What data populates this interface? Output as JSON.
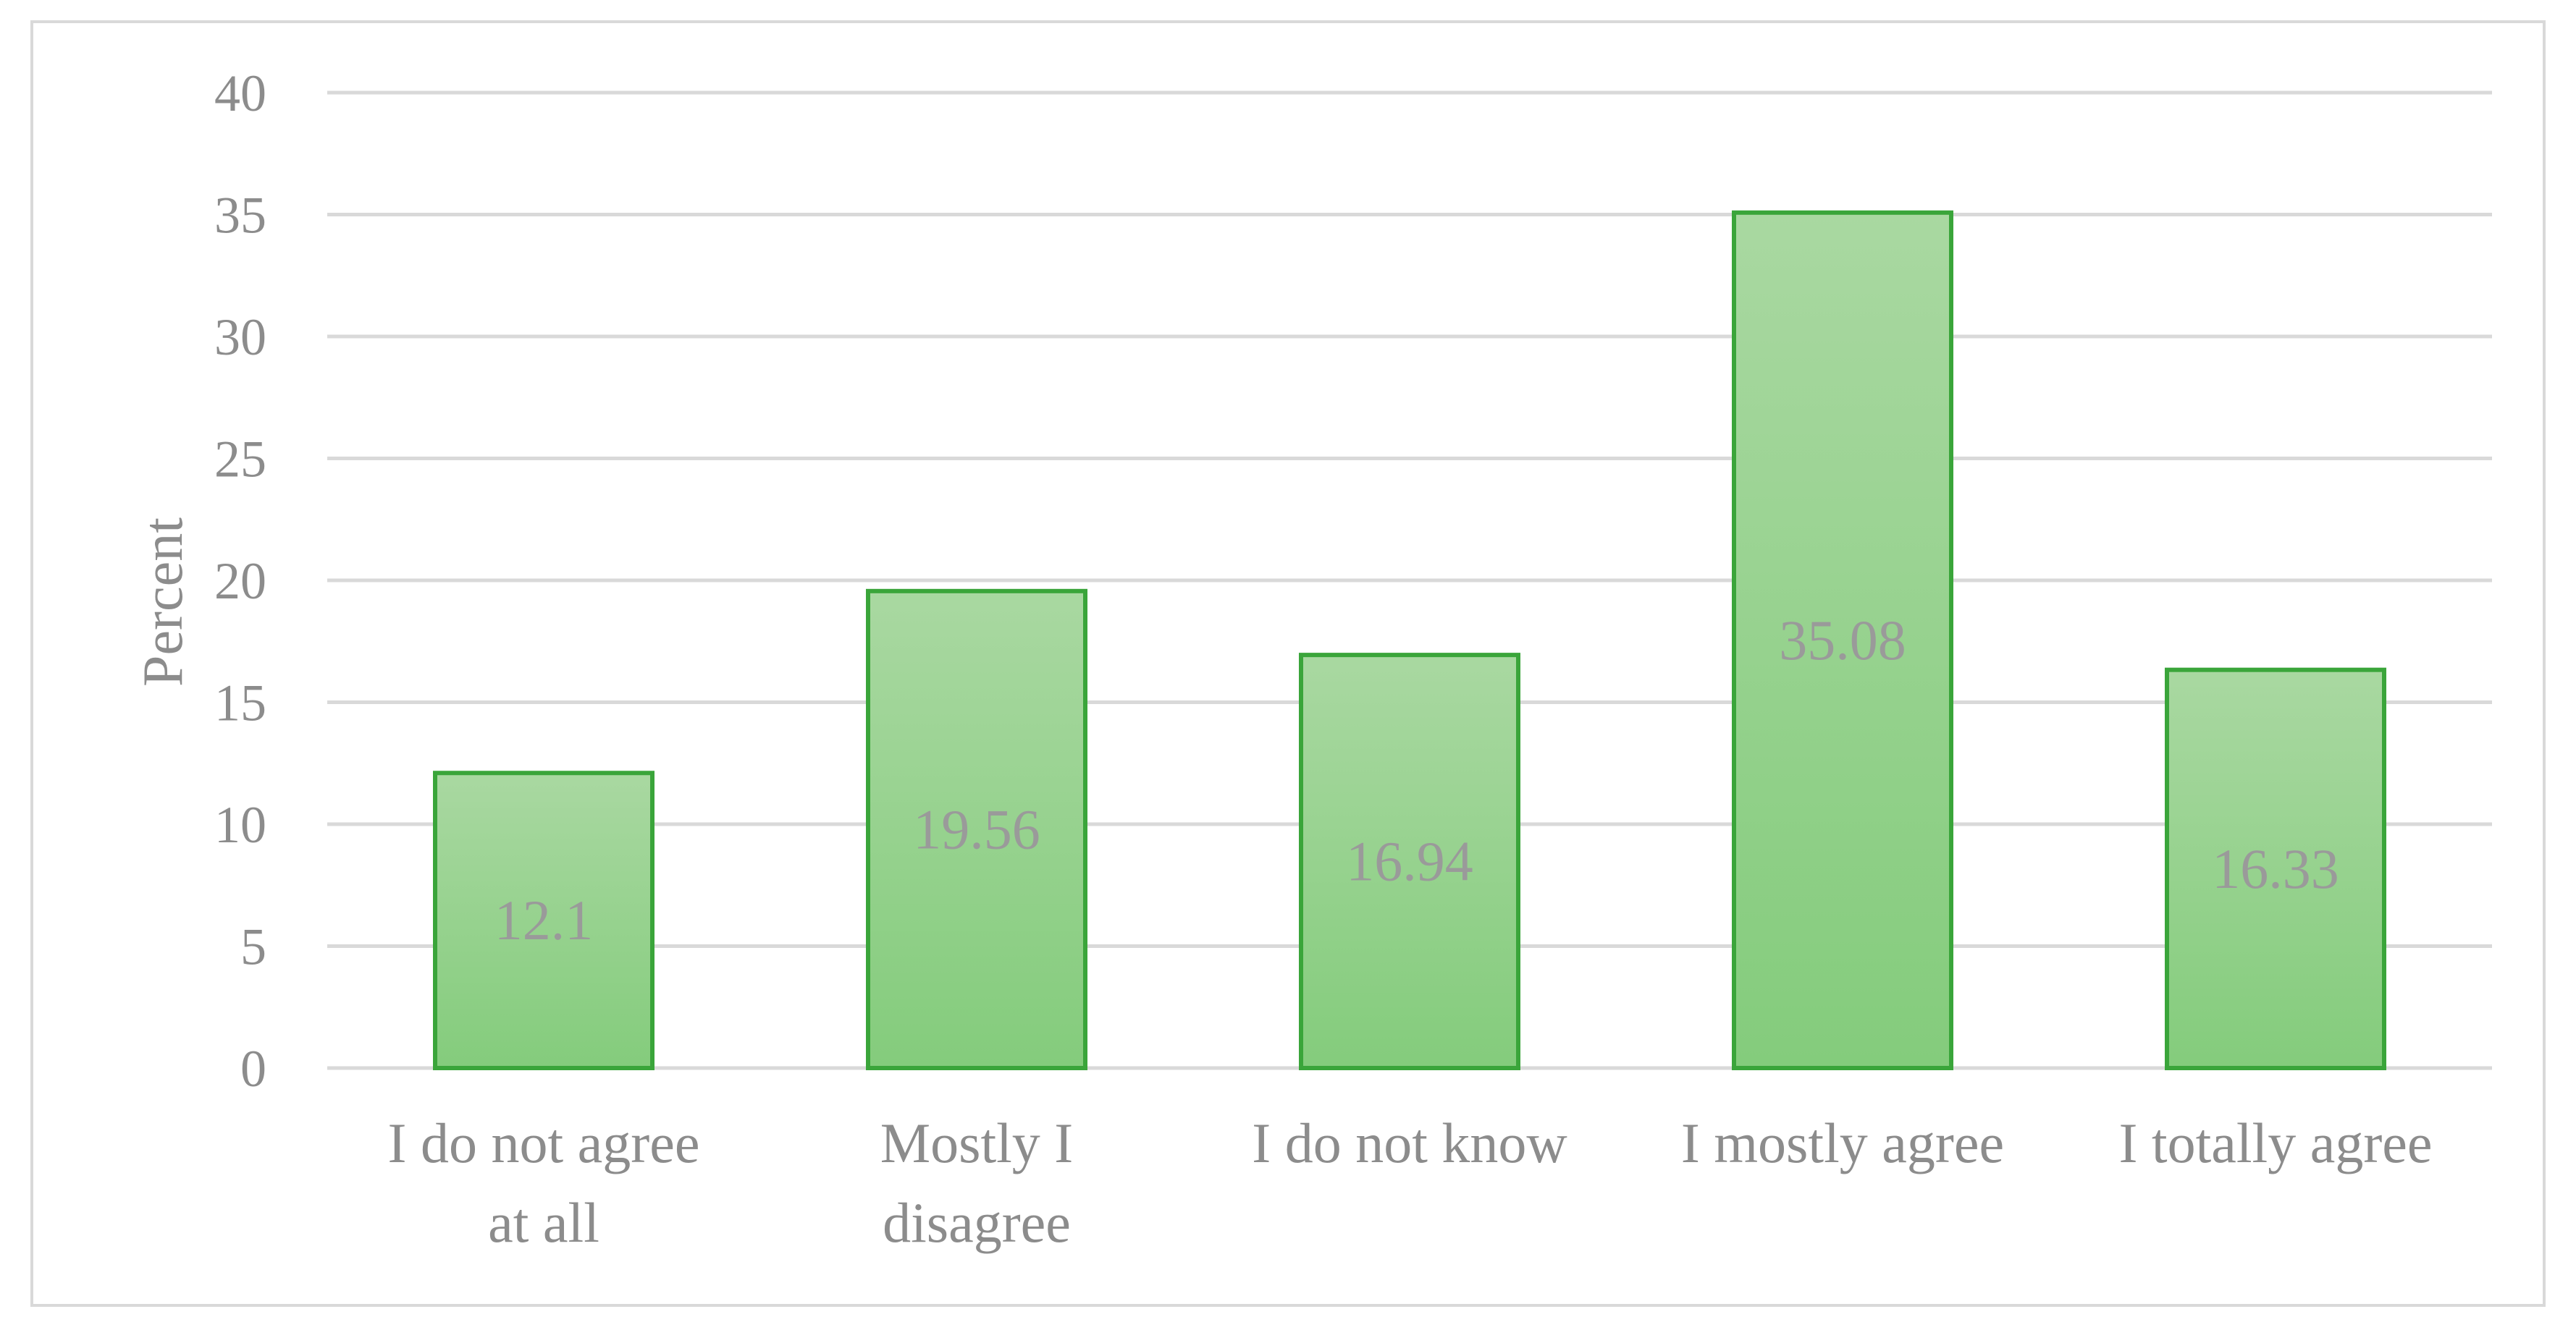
{
  "chart_data": {
    "type": "bar",
    "categories": [
      [
        "I do not agree",
        "at all"
      ],
      [
        "Mostly I",
        "disagree"
      ],
      [
        "I do not know"
      ],
      [
        "I mostly agree"
      ],
      [
        "I totally agree"
      ]
    ],
    "values": [
      12.1,
      19.56,
      16.94,
      35.08,
      16.33
    ],
    "data_labels": [
      "12.1",
      "19.56",
      "16.94",
      "35.08",
      "16.33"
    ],
    "ylabel": "Percent",
    "xlabel": "",
    "title": "",
    "ylim": [
      0,
      40
    ],
    "yticks": [
      0,
      5,
      10,
      15,
      20,
      25,
      30,
      35,
      40
    ],
    "grid": true,
    "legend": "none",
    "colors": {
      "bar_fill_top": "#a9d8a1",
      "bar_fill_bottom": "#84cc7c",
      "bar_stroke": "#3aa53a",
      "grid": "#d9d9d9",
      "text": "#8c8c8c",
      "data_label": "#9a9a9a"
    }
  }
}
